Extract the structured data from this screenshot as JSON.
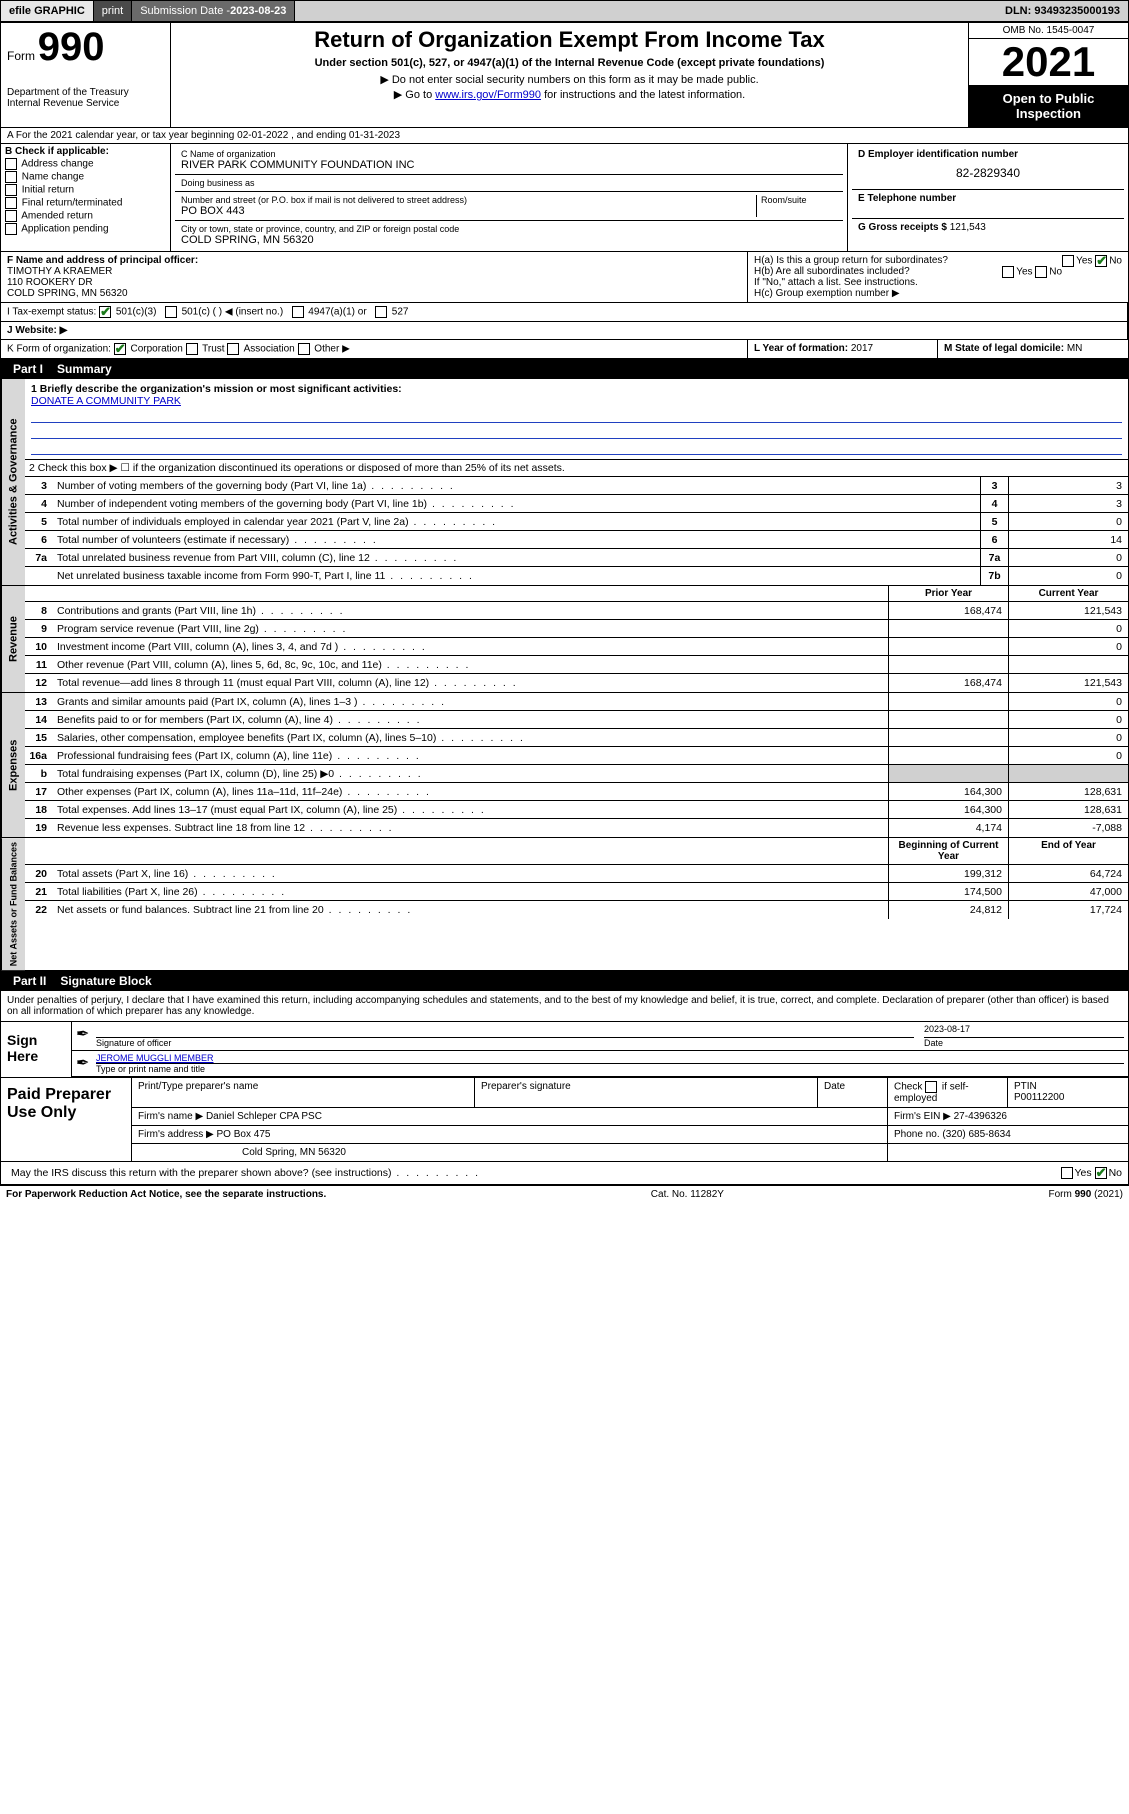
{
  "topbar": {
    "efile": "efile GRAPHIC",
    "print": "print",
    "subdate_label": "Submission Date - ",
    "subdate": "2023-08-23",
    "dln_label": "DLN: ",
    "dln": "93493235000193"
  },
  "header": {
    "form_word": "Form",
    "form_num": "990",
    "dept": "Department of the Treasury",
    "irs": "Internal Revenue Service",
    "title": "Return of Organization Exempt From Income Tax",
    "sub": "Under section 501(c), 527, or 4947(a)(1) of the Internal Revenue Code (except private foundations)",
    "note1": "▶ Do not enter social security numbers on this form as it may be made public.",
    "note2a": "▶ Go to ",
    "note2link": "www.irs.gov/Form990",
    "note2b": " for instructions and the latest information.",
    "omb": "OMB No. 1545-0047",
    "year": "2021",
    "open": "Open to Public Inspection"
  },
  "lineA": "A For the 2021 calendar year, or tax year beginning 02-01-2022   , and ending 01-31-2023",
  "colB": {
    "hdr": "B Check if applicable:",
    "items": [
      "Address change",
      "Name change",
      "Initial return",
      "Final return/terminated",
      "Amended return",
      "Application pending"
    ]
  },
  "colC": {
    "name_lbl": "C Name of organization",
    "name": "RIVER PARK COMMUNITY FOUNDATION INC",
    "dba_lbl": "Doing business as",
    "dba": "",
    "addr_lbl": "Number and street (or P.O. box if mail is not delivered to street address)",
    "room_lbl": "Room/suite",
    "addr": "PO BOX 443",
    "city_lbl": "City or town, state or province, country, and ZIP or foreign postal code",
    "city": "COLD SPRING, MN  56320"
  },
  "colD": {
    "ein_lbl": "D Employer identification number",
    "ein": "82-2829340",
    "tel_lbl": "E Telephone number",
    "tel": "",
    "gross_lbl": "G Gross receipts $ ",
    "gross": "121,543"
  },
  "rowF": {
    "lbl": "F Name and address of principal officer:",
    "name": "TIMOTHY A KRAEMER",
    "addr1": "110 ROOKERY DR",
    "addr2": "COLD SPRING, MN  56320"
  },
  "rowH": {
    "ha": "H(a)  Is this a group return for subordinates?",
    "hb": "H(b)  Are all subordinates included?",
    "hb_note": "If \"No,\" attach a list. See instructions.",
    "hc": "H(c)  Group exemption number ▶",
    "yes": "Yes",
    "no": "No"
  },
  "rowI": {
    "lbl": "I   Tax-exempt status:",
    "o1": "501(c)(3)",
    "o2": "501(c) (  ) ◀ (insert no.)",
    "o3": "4947(a)(1) or",
    "o4": "527"
  },
  "rowJ": {
    "lbl": "J   Website: ▶"
  },
  "rowK": {
    "lbl": "K Form of organization:",
    "o1": "Corporation",
    "o2": "Trust",
    "o3": "Association",
    "o4": "Other ▶"
  },
  "rowL": {
    "lbl": "L Year of formation: ",
    "val": "2017"
  },
  "rowM": {
    "lbl": "M State of legal domicile: ",
    "val": "MN"
  },
  "part1": {
    "hdr": "Part I",
    "title": "Summary"
  },
  "gov": {
    "label": "Activities & Governance",
    "l1": "1   Briefly describe the organization's mission or most significant activities:",
    "mission": "DONATE A COMMUNITY PARK",
    "l2": "2   Check this box ▶ ☐  if the organization discontinued its operations or disposed of more than 25% of its net assets.",
    "rows": [
      {
        "n": "3",
        "t": "Number of voting members of the governing body (Part VI, line 1a)",
        "box": "3",
        "v": "3"
      },
      {
        "n": "4",
        "t": "Number of independent voting members of the governing body (Part VI, line 1b)",
        "box": "4",
        "v": "3"
      },
      {
        "n": "5",
        "t": "Total number of individuals employed in calendar year 2021 (Part V, line 2a)",
        "box": "5",
        "v": "0"
      },
      {
        "n": "6",
        "t": "Total number of volunteers (estimate if necessary)",
        "box": "6",
        "v": "14"
      },
      {
        "n": "7a",
        "t": "Total unrelated business revenue from Part VIII, column (C), line 12",
        "box": "7a",
        "v": "0"
      },
      {
        "n": "",
        "t": "Net unrelated business taxable income from Form 990-T, Part I, line 11",
        "box": "7b",
        "v": "0"
      }
    ]
  },
  "rev": {
    "label": "Revenue",
    "hdr_prior": "Prior Year",
    "hdr_curr": "Current Year",
    "rows": [
      {
        "n": "8",
        "t": "Contributions and grants (Part VIII, line 1h)",
        "p": "168,474",
        "c": "121,543"
      },
      {
        "n": "9",
        "t": "Program service revenue (Part VIII, line 2g)",
        "p": "",
        "c": "0"
      },
      {
        "n": "10",
        "t": "Investment income (Part VIII, column (A), lines 3, 4, and 7d )",
        "p": "",
        "c": "0"
      },
      {
        "n": "11",
        "t": "Other revenue (Part VIII, column (A), lines 5, 6d, 8c, 9c, 10c, and 11e)",
        "p": "",
        "c": ""
      },
      {
        "n": "12",
        "t": "Total revenue—add lines 8 through 11 (must equal Part VIII, column (A), line 12)",
        "p": "168,474",
        "c": "121,543"
      }
    ]
  },
  "exp": {
    "label": "Expenses",
    "rows": [
      {
        "n": "13",
        "t": "Grants and similar amounts paid (Part IX, column (A), lines 1–3 )",
        "p": "",
        "c": "0"
      },
      {
        "n": "14",
        "t": "Benefits paid to or for members (Part IX, column (A), line 4)",
        "p": "",
        "c": "0"
      },
      {
        "n": "15",
        "t": "Salaries, other compensation, employee benefits (Part IX, column (A), lines 5–10)",
        "p": "",
        "c": "0"
      },
      {
        "n": "16a",
        "t": "Professional fundraising fees (Part IX, column (A), line 11e)",
        "p": "",
        "c": "0"
      },
      {
        "n": "b",
        "t": "Total fundraising expenses (Part IX, column (D), line 25) ▶0",
        "p": "shade",
        "c": "shade"
      },
      {
        "n": "17",
        "t": "Other expenses (Part IX, column (A), lines 11a–11d, 11f–24e)",
        "p": "164,300",
        "c": "128,631"
      },
      {
        "n": "18",
        "t": "Total expenses. Add lines 13–17 (must equal Part IX, column (A), line 25)",
        "p": "164,300",
        "c": "128,631"
      },
      {
        "n": "19",
        "t": "Revenue less expenses. Subtract line 18 from line 12",
        "p": "4,174",
        "c": "-7,088"
      }
    ]
  },
  "net": {
    "label": "Net Assets or Fund Balances",
    "hdr_beg": "Beginning of Current Year",
    "hdr_end": "End of Year",
    "rows": [
      {
        "n": "20",
        "t": "Total assets (Part X, line 16)",
        "p": "199,312",
        "c": "64,724"
      },
      {
        "n": "21",
        "t": "Total liabilities (Part X, line 26)",
        "p": "174,500",
        "c": "47,000"
      },
      {
        "n": "22",
        "t": "Net assets or fund balances. Subtract line 21 from line 20",
        "p": "24,812",
        "c": "17,724"
      }
    ]
  },
  "part2": {
    "hdr": "Part II",
    "title": "Signature Block"
  },
  "sig": {
    "perjury": "Under penalties of perjury, I declare that I have examined this return, including accompanying schedules and statements, and to the best of my knowledge and belief, it is true, correct, and complete. Declaration of preparer (other than officer) is based on all information of which preparer has any knowledge.",
    "sign_here": "Sign Here",
    "sig_officer": "Signature of officer",
    "date_lbl": "Date",
    "date": "2023-08-17",
    "name": "JEROME MUGGLI MEMBER",
    "name_lbl": "Type or print name and title"
  },
  "paid": {
    "title": "Paid Preparer Use Only",
    "h1": "Print/Type preparer's name",
    "h2": "Preparer's signature",
    "h3": "Date",
    "h4a": "Check",
    "h4b": "if self-employed",
    "h5": "PTIN",
    "ptin": "P00112200",
    "firm_lbl": "Firm's name   ▶ ",
    "firm": "Daniel Schleper CPA PSC",
    "ein_lbl": "Firm's EIN ▶ ",
    "ein": "27-4396326",
    "addr_lbl": "Firm's address ▶ ",
    "addr": "PO Box 475",
    "addr2": "Cold Spring, MN  56320",
    "phone_lbl": "Phone no. ",
    "phone": "(320) 685-8634"
  },
  "may": {
    "q": "May the IRS discuss this return with the preparer shown above? (see instructions)",
    "yes": "Yes",
    "no": "No"
  },
  "footer": {
    "left": "For Paperwork Reduction Act Notice, see the separate instructions.",
    "mid": "Cat. No. 11282Y",
    "right": "Form 990 (2021)"
  }
}
